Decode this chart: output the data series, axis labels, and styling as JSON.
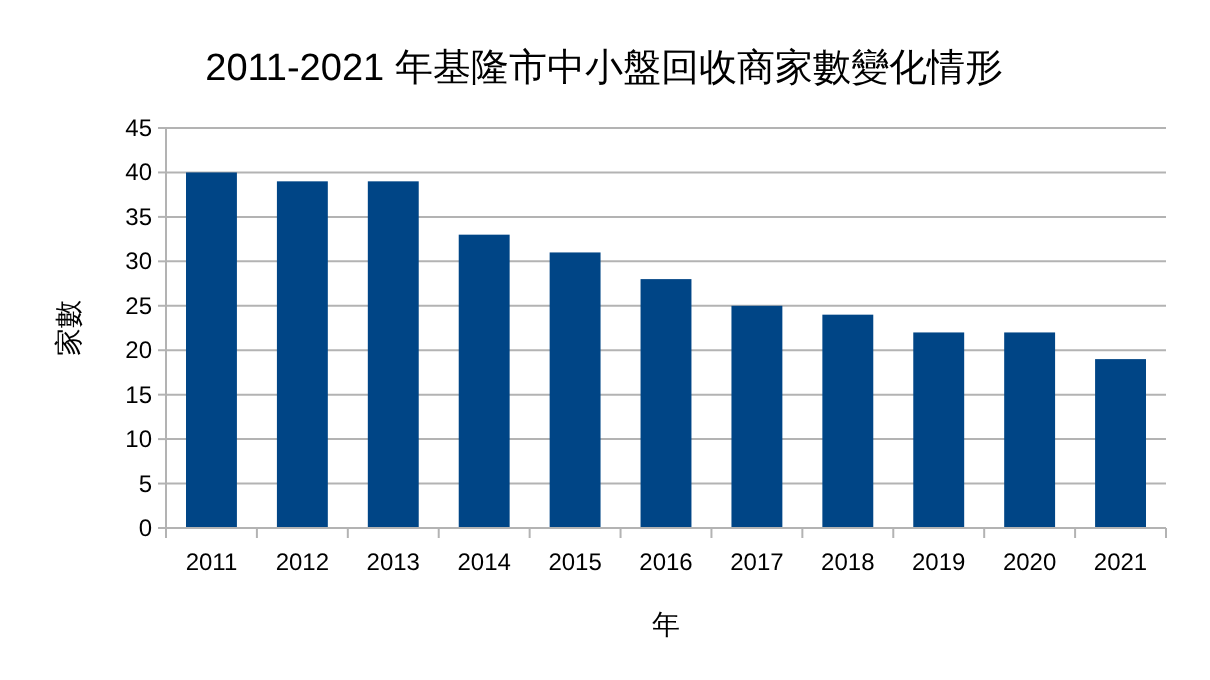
{
  "chart_data": {
    "type": "bar",
    "title": "2011-2021 年基隆市中小盤回收商家數變化情形",
    "xlabel": "年",
    "ylabel": "家數",
    "categories": [
      "2011",
      "2012",
      "2013",
      "2014",
      "2015",
      "2016",
      "2017",
      "2018",
      "2019",
      "2020",
      "2021"
    ],
    "values": [
      40,
      39,
      39,
      33,
      31,
      28,
      25,
      24,
      22,
      22,
      19
    ],
    "color": "#004586",
    "ylim": [
      0,
      45
    ],
    "yticks": [
      0,
      5,
      10,
      15,
      20,
      25,
      30,
      35,
      40,
      45
    ],
    "grid": "y"
  }
}
